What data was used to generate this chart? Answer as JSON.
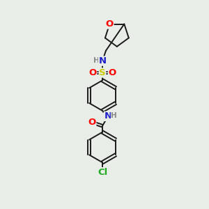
{
  "background_color": "#e8ede8",
  "bond_color": "#1a1a1a",
  "atom_colors": {
    "O": "#ff0000",
    "N": "#2222cc",
    "S": "#cccc00",
    "Cl": "#22aa22",
    "C": "#1a1a1a",
    "H": "#888888"
  },
  "font_size_atom": 8.5,
  "figsize": [
    3.0,
    3.0
  ],
  "dpi": 100,
  "lw": 1.4
}
